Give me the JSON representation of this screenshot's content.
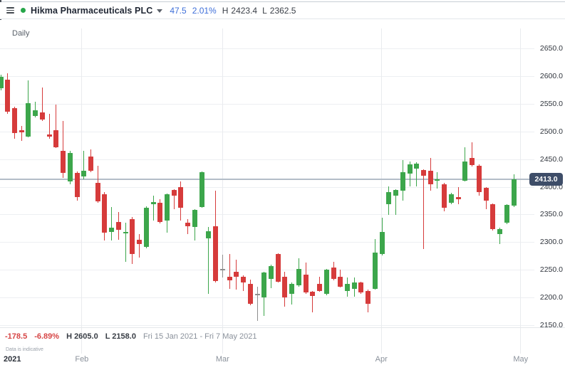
{
  "toolbar": {
    "instrument": "Hikma Pharmaceuticals PLC",
    "change": "47.5",
    "change_pct": "2.01%",
    "session_high_label": "H",
    "session_high": "2423.4",
    "session_low_label": "L",
    "session_low": "2362.5"
  },
  "chart": {
    "timeframe": "Daily",
    "price_tag": "2413.0",
    "footer": {
      "period_change": "-178.5",
      "period_change_pct": "-6.89%",
      "period_high": "H 2605.0",
      "period_low": "L 2158.0",
      "date_range": "Fri 15 Jan 2021 - Fri 7 May 2021",
      "disclaimer": "Data is indicative"
    }
  },
  "chart_data": {
    "type": "candlestick",
    "title": "Hikma Pharmaceuticals PLC — Daily",
    "ylim": [
      2150,
      2650
    ],
    "grid": true,
    "legend_position": "none",
    "current_price": 2413.0,
    "y_ticks": [
      2650,
      2600,
      2550,
      2500,
      2450,
      2400,
      2350,
      2300,
      2250,
      2200,
      2150
    ],
    "x_ticks": [
      {
        "label": "2021",
        "index": 0.4,
        "grid": false,
        "strong": true,
        "align": "left"
      },
      {
        "label": "Feb",
        "index": 11.7,
        "grid": true
      },
      {
        "label": "Mar",
        "index": 32.0,
        "grid": true
      },
      {
        "label": "Apr",
        "index": 54.9,
        "grid": true
      },
      {
        "label": "May",
        "index": 75.0,
        "grid": true
      }
    ],
    "colors": {
      "up": "#3ca64b",
      "down": "#d63b3b",
      "neutral": "#8e8e8e",
      "price_line": "#b3bdc8",
      "price_tag_bg": "#3e4d68",
      "accent_blue": "#3e6fd9",
      "negative_red": "#d64545"
    },
    "candles_format": [
      "open",
      "high",
      "low",
      "close",
      "neutral_flag"
    ],
    "candles": [
      [
        2578,
        2602,
        2574,
        2598
      ],
      [
        2593,
        2605,
        2532,
        2535
      ],
      [
        2542,
        2545,
        2487,
        2497
      ],
      [
        2502,
        2510,
        2483,
        2498
      ],
      [
        2490,
        2592,
        2489,
        2551
      ],
      [
        2528,
        2553,
        2525,
        2538
      ],
      [
        2534,
        2579,
        2519,
        2521
      ],
      [
        2495,
        2532,
        2487,
        2491
      ],
      [
        2502,
        2548,
        2470,
        2471
      ],
      [
        2465,
        2519,
        2416,
        2425
      ],
      [
        2410,
        2465,
        2405,
        2461
      ],
      [
        2425,
        2427,
        2375,
        2381
      ],
      [
        2418,
        2465,
        2414,
        2429
      ],
      [
        2454,
        2467,
        2426,
        2429
      ],
      [
        2407,
        2438,
        2371,
        2373
      ],
      [
        2387,
        2390,
        2303,
        2317
      ],
      [
        2319,
        2364,
        2303,
        2326
      ],
      [
        2336,
        2354,
        2304,
        2322
      ],
      [
        2316,
        2335,
        2265,
        2318
      ],
      [
        2342,
        2345,
        2261,
        2278
      ],
      [
        2304,
        2315,
        2272,
        2297
      ],
      [
        2291,
        2365,
        2289,
        2362
      ],
      [
        2368,
        2384,
        2339,
        2373
      ],
      [
        2371,
        2377,
        2334,
        2336
      ],
      [
        2339,
        2388,
        2317,
        2386
      ],
      [
        2394,
        2396,
        2360,
        2384
      ],
      [
        2400,
        2409,
        2339,
        2362
      ],
      [
        2335,
        2342,
        2315,
        2329
      ],
      [
        2328,
        2360,
        2303,
        2358
      ],
      [
        2364,
        2428,
        2362,
        2426
      ],
      [
        2307,
        2328,
        2206,
        2320
      ],
      [
        2329,
        2393,
        2227,
        2230
      ],
      [
        2251,
        2277,
        2236,
        2251,
        1
      ],
      [
        2238,
        2278,
        2216,
        2231
      ],
      [
        2246,
        2268,
        2214,
        2238
      ],
      [
        2238,
        2240,
        2212,
        2227
      ],
      [
        2225,
        2232,
        2186,
        2188
      ],
      [
        2207,
        2220,
        2158,
        2207,
        1
      ],
      [
        2200,
        2247,
        2167,
        2245
      ],
      [
        2233,
        2259,
        2217,
        2257
      ],
      [
        2278,
        2280,
        2227,
        2229
      ],
      [
        2238,
        2246,
        2184,
        2200
      ],
      [
        2206,
        2227,
        2187,
        2225
      ],
      [
        2222,
        2271,
        2220,
        2252
      ],
      [
        2241,
        2263,
        2207,
        2209
      ],
      [
        2210,
        2212,
        2173,
        2203
      ],
      [
        2225,
        2238,
        2210,
        2212
      ],
      [
        2206,
        2252,
        2204,
        2250
      ],
      [
        2254,
        2264,
        2231,
        2233
      ],
      [
        2238,
        2250,
        2218,
        2220
      ],
      [
        2212,
        2236,
        2201,
        2225
      ],
      [
        2216,
        2236,
        2202,
        2227
      ],
      [
        2227,
        2229,
        2207,
        2209
      ],
      [
        2212,
        2214,
        2173,
        2188
      ],
      [
        2216,
        2306,
        2214,
        2281
      ],
      [
        2278,
        2344,
        2276,
        2319
      ],
      [
        2368,
        2401,
        2349,
        2390
      ],
      [
        2384,
        2395,
        2349,
        2394
      ],
      [
        2393,
        2448,
        2375,
        2426
      ],
      [
        2424,
        2445,
        2400,
        2441
      ],
      [
        2433,
        2444,
        2400,
        2442
      ],
      [
        2430,
        2432,
        2288,
        2420
      ],
      [
        2429,
        2452,
        2393,
        2405
      ],
      [
        2412,
        2426,
        2397,
        2414
      ],
      [
        2405,
        2407,
        2356,
        2362
      ],
      [
        2371,
        2389,
        2369,
        2387
      ],
      [
        2381,
        2400,
        2369,
        2377
      ],
      [
        2411,
        2471,
        2409,
        2445
      ],
      [
        2452,
        2480,
        2437,
        2439
      ],
      [
        2438,
        2440,
        2384,
        2390
      ],
      [
        2398,
        2400,
        2360,
        2375
      ],
      [
        2368,
        2370,
        2321,
        2323
      ],
      [
        2315,
        2326,
        2296,
        2323
      ],
      [
        2335,
        2369,
        2333,
        2367
      ],
      [
        2366,
        2423,
        2363,
        2413
      ]
    ]
  }
}
